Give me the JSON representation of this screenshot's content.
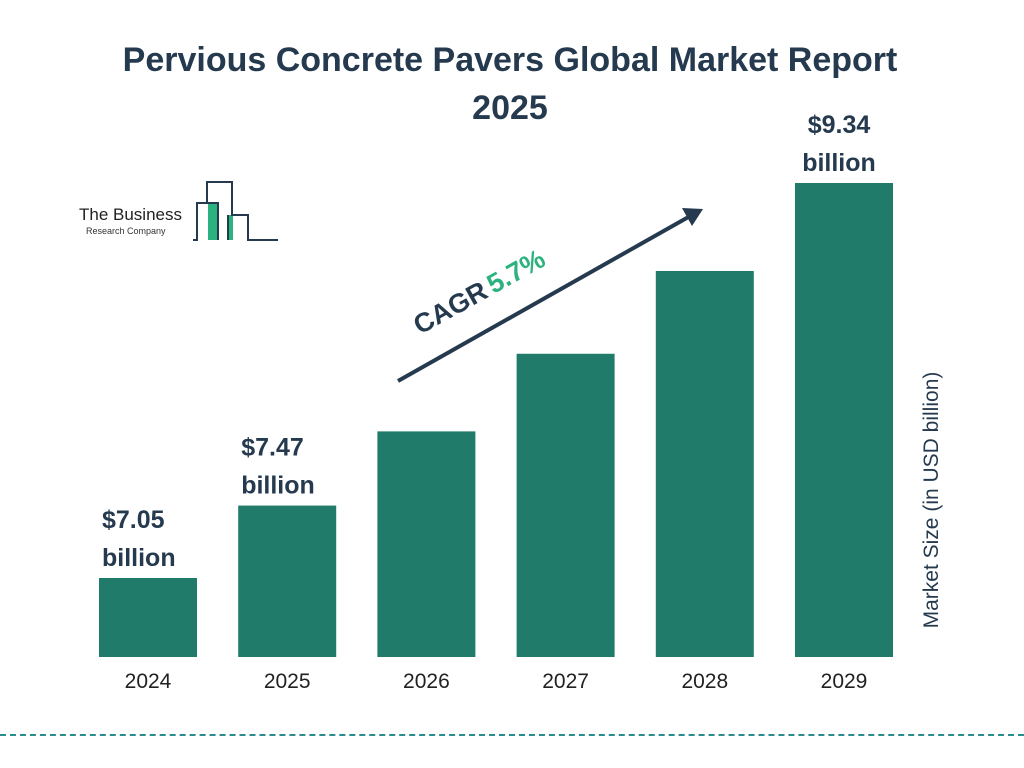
{
  "title": "Pervious Concrete Pavers Global Market Report 2025",
  "logo": {
    "line1": "The Business",
    "line2": "Research Company"
  },
  "cagr": {
    "label": "CAGR",
    "value": "5.7%"
  },
  "colors": {
    "bar": "#217b6b",
    "title": "#253a4e",
    "cagr_value": "#2bb27e",
    "divider": "#2a8c8c"
  },
  "chart_data": {
    "type": "bar",
    "title": "Pervious Concrete Pavers Global Market Report 2025",
    "categories": [
      "2024",
      "2025",
      "2026",
      "2027",
      "2028",
      "2029"
    ],
    "values": [
      7.05,
      7.47,
      7.9,
      8.35,
      8.83,
      9.34
    ],
    "data_labels": [
      "$7.05 billion",
      "$7.47 billion",
      "",
      "",
      "",
      "$9.34 billion"
    ],
    "xlabel": "",
    "ylabel": "Market Size (in USD billion)",
    "grid": false,
    "legend": "none"
  }
}
